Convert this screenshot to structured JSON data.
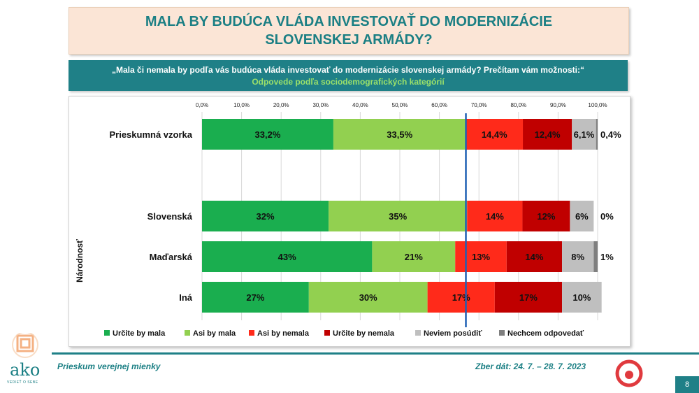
{
  "title": "MALA BY BUDÚCA VLÁDA INVESTOVAŤ DO MODERNIZÁCIE SLOVENSKEJ ARMÁDY?",
  "question": "„Mala či nemala by podľa vás budúca vláda investovať do modernizácie slovenskej armády? Prečítam vám možnosti:“",
  "subtitle": "Odpovede podľa sociodemografických kategórií",
  "group_label": "Národnosť",
  "footer": {
    "left": "Prieskum verejnej mienky",
    "right": "Zber dát: 24. 7. – 28. 7. 2023",
    "page": "8",
    "logo_text": "ako",
    "logo_tagline": "VEDIEŤ O SEBE"
  },
  "colors": {
    "teal": "#1f8087",
    "urcite_by_mala": "#1aae4f",
    "asi_by_mala": "#92d050",
    "asi_by_nemala": "#ff2a1a",
    "urcite_by_nemala": "#c00000",
    "neviem": "#bfbfbf",
    "nechcem": "#7f7f7f"
  },
  "chart_data": {
    "type": "bar",
    "orientation": "horizontal",
    "stacked": true,
    "xlim": [
      0,
      100
    ],
    "x_ticks": [
      "0,0%",
      "10,0%",
      "20,0%",
      "30,0%",
      "40,0%",
      "50,0%",
      "60,0%",
      "70,0%",
      "80,0%",
      "90,0%",
      "100,0%"
    ],
    "grid": true,
    "legend_position": "bottom",
    "reference_line_value": 66.7,
    "categories": [
      "Prieskumná vzorka",
      "Slovenská",
      "Maďarská",
      "Iná"
    ],
    "series": [
      {
        "name": "Určite by mala",
        "color": "#1aae4f",
        "values": [
          33.2,
          32,
          43,
          27
        ],
        "labels": [
          "33,2%",
          "32%",
          "43%",
          "27%"
        ]
      },
      {
        "name": "Asi by mala",
        "color": "#92d050",
        "values": [
          33.5,
          35,
          21,
          30
        ],
        "labels": [
          "33,5%",
          "35%",
          "21%",
          "30%"
        ]
      },
      {
        "name": "Asi by nemala",
        "color": "#ff2a1a",
        "values": [
          14.4,
          14,
          13,
          17
        ],
        "labels": [
          "14,4%",
          "14%",
          "13%",
          "17%"
        ]
      },
      {
        "name": "Určite by nemala",
        "color": "#c00000",
        "values": [
          12.4,
          12,
          14,
          17
        ],
        "labels": [
          "12,4%",
          "12%",
          "14%",
          "17%"
        ]
      },
      {
        "name": "Neviem posúdiť",
        "color": "#bfbfbf",
        "values": [
          6.1,
          6,
          8,
          10
        ],
        "labels": [
          "6,1%",
          "6%",
          "8%",
          "10%"
        ]
      },
      {
        "name": "Nechcem odpovedať",
        "color": "#7f7f7f",
        "values": [
          0.4,
          0,
          1,
          0
        ],
        "labels": [
          "0,4%",
          "0%",
          "1%",
          ""
        ]
      }
    ]
  }
}
